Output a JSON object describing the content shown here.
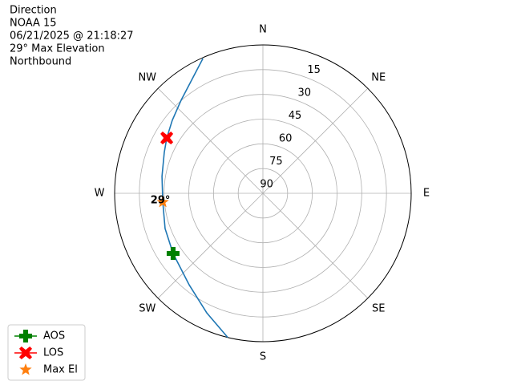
{
  "chart_data": {
    "type": "polar",
    "title_lines": [
      "Direction",
      "NOAA 15",
      "06/21/2025 @ 21:18:27",
      "29° Max Elevation",
      "Northbound"
    ],
    "rlim": [
      90,
      0
    ],
    "rticks": [
      15,
      30,
      45,
      60,
      75,
      90
    ],
    "thetaticks": [
      {
        "value": 0,
        "label": "N"
      },
      {
        "value": 45,
        "label": "NE"
      },
      {
        "value": 90,
        "label": "E"
      },
      {
        "value": 135,
        "label": "SE"
      },
      {
        "value": 180,
        "label": "S"
      },
      {
        "value": 225,
        "label": "SW"
      },
      {
        "value": 270,
        "label": "W"
      },
      {
        "value": 315,
        "label": "NW"
      }
    ],
    "grid": true,
    "legend": "lower left",
    "series": [
      {
        "color": "#1f77b4",
        "marker": "line",
        "theta": [
          193.7,
          205.2,
          218.9,
          236.2,
          250.2,
          265,
          279.5,
          292.5,
          299.9,
          308.8,
          318.7,
          327.1,
          336
        ],
        "values": [
          0,
          9.9,
          18.7,
          24.4,
          26.9,
          29,
          27.9,
          25.2,
          22.7,
          19.4,
          14.8,
          9.4,
          0.5
        ]
      },
      {
        "name": "AOS",
        "color": "#008000",
        "marker": "plus",
        "theta": [
          236.2
        ],
        "values": [
          24.4
        ]
      },
      {
        "name": "LOS",
        "color": "#ff0000",
        "marker": "x",
        "theta": [
          299.9
        ],
        "values": [
          22.7
        ]
      },
      {
        "name": "Max El",
        "color": "#ff7f0e",
        "marker": "star",
        "theta": [
          265
        ],
        "values": [
          29
        ]
      }
    ],
    "annotations": [
      {
        "text": "29°"
      }
    ]
  }
}
